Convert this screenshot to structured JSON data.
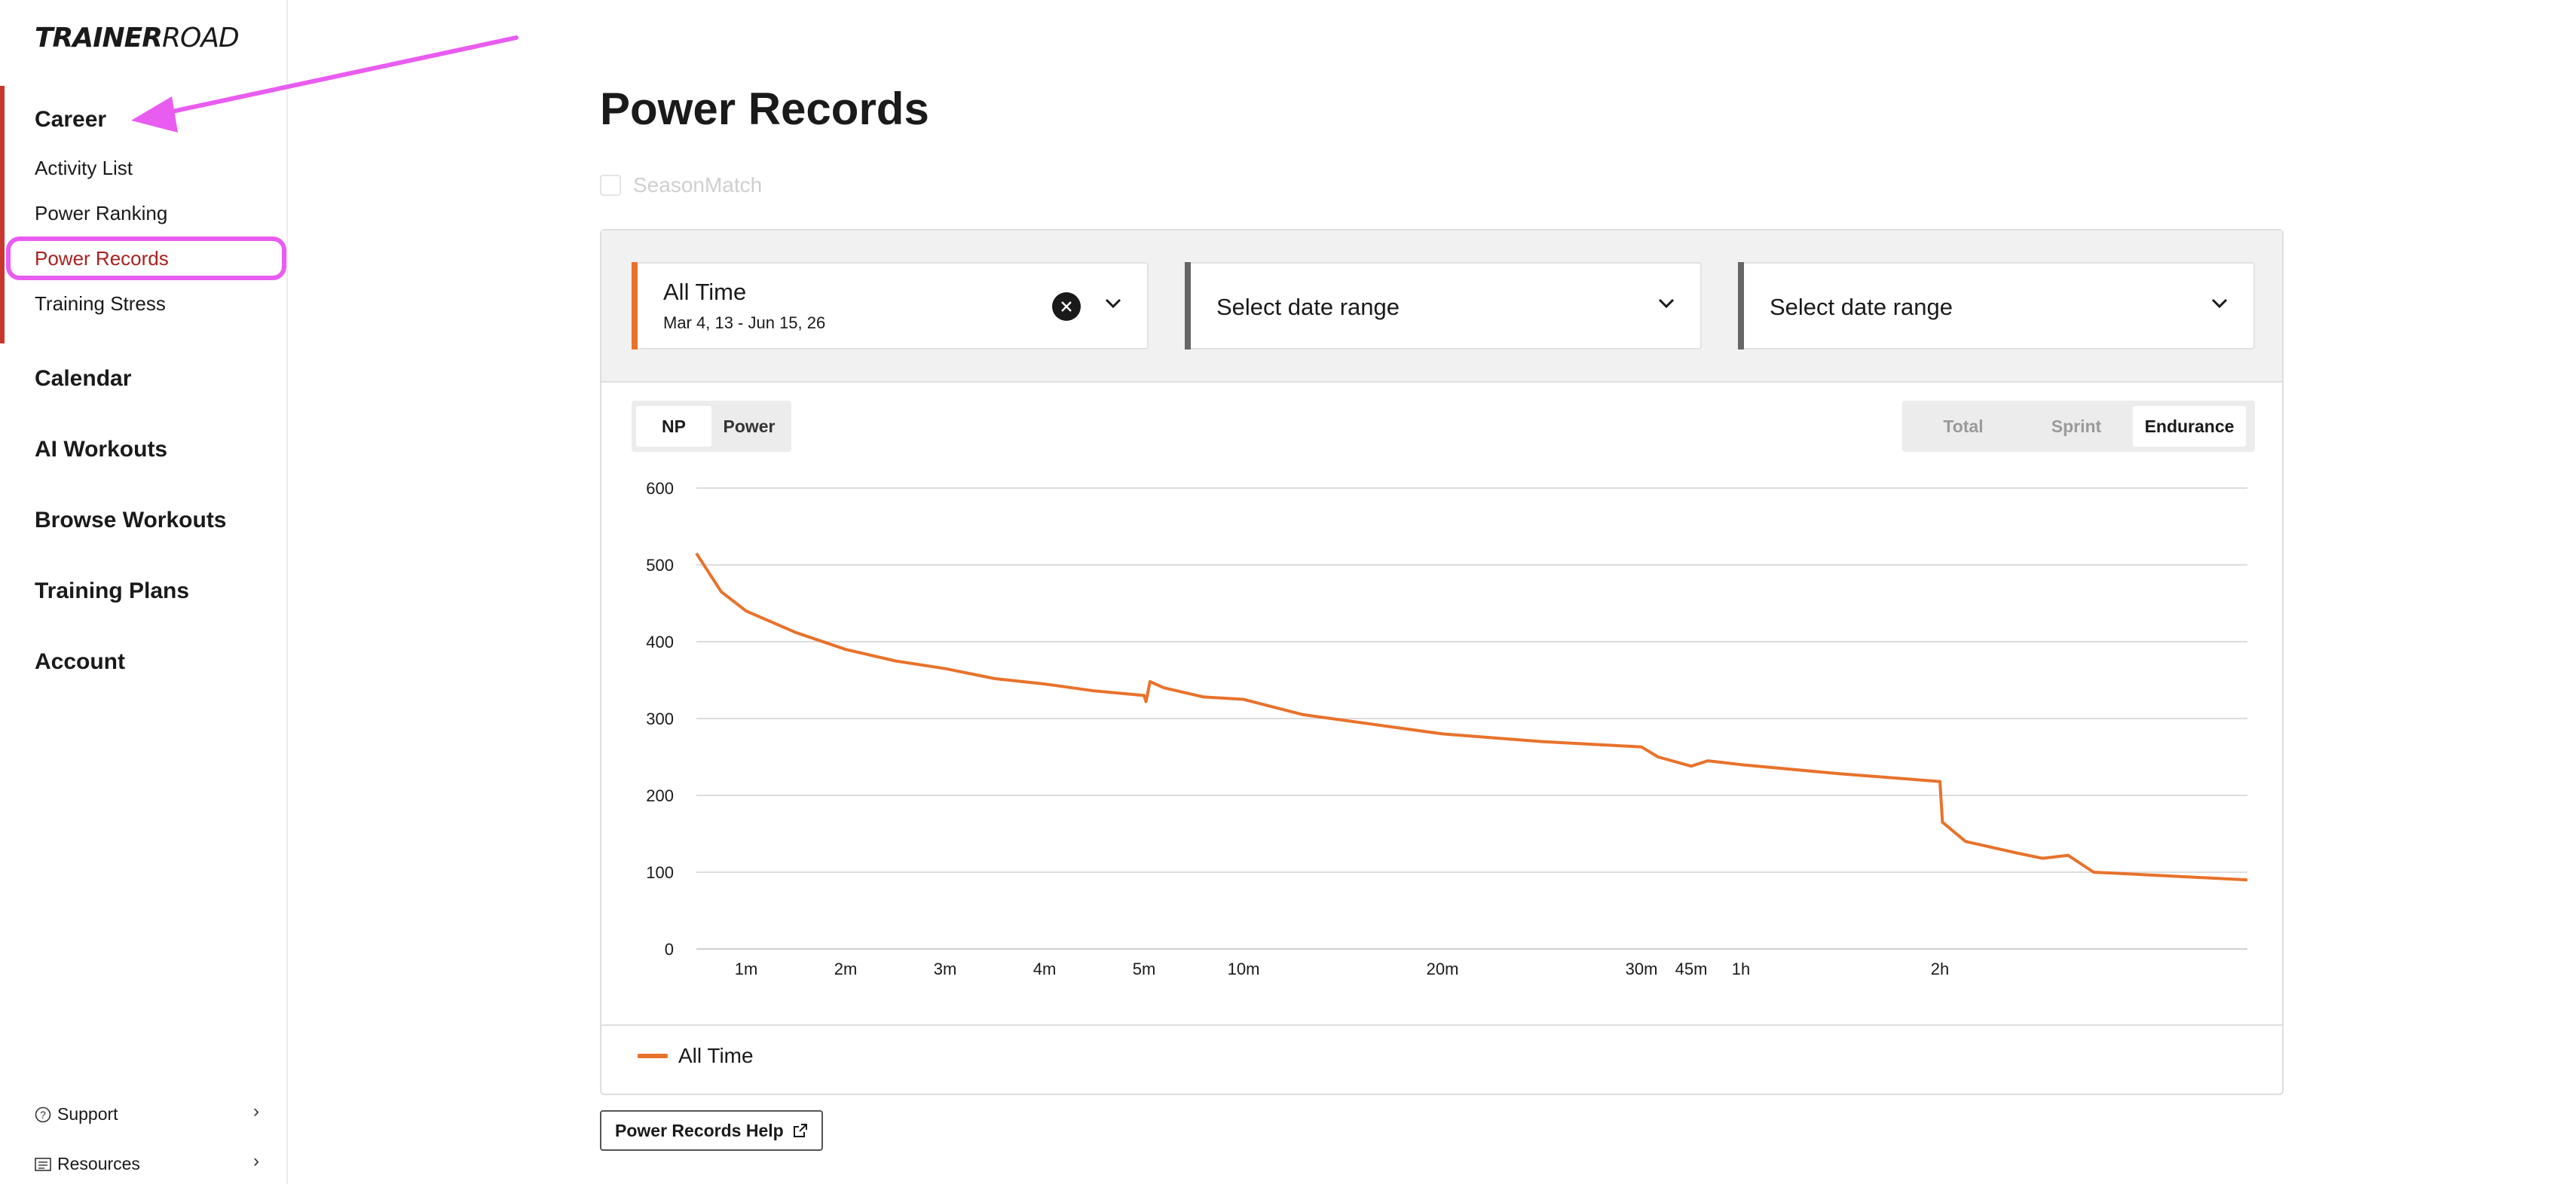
{
  "sidebar": {
    "logo": {
      "bold": "TRAINER",
      "rest": "ROAD"
    },
    "career": {
      "label": "Career",
      "items": [
        {
          "label": "Activity List"
        },
        {
          "label": "Power Ranking"
        },
        {
          "label": "Power Records"
        },
        {
          "label": "Training Stress"
        }
      ]
    },
    "nav": [
      {
        "label": "Calendar"
      },
      {
        "label": "AI Workouts"
      },
      {
        "label": "Browse Workouts"
      },
      {
        "label": "Training Plans"
      },
      {
        "label": "Account"
      }
    ],
    "footer": [
      {
        "label": "Support",
        "icon": "question-circle-icon"
      },
      {
        "label": "Resources",
        "icon": "document-icon"
      }
    ]
  },
  "main": {
    "title": "Power Records",
    "season_match": "SeasonMatch",
    "ranges": [
      {
        "label": "All Time",
        "sub": "Mar 4, 13 - Jun 15, 26",
        "accent": "#e8722b"
      },
      {
        "label": "Select date range",
        "sub": "",
        "accent": "#666666"
      },
      {
        "label": "Select date range",
        "sub": "",
        "accent": "#666666"
      }
    ],
    "metric_toggle": {
      "options": [
        "NP",
        "Power"
      ],
      "selected": "NP"
    },
    "type_toggle": {
      "options": [
        "Total",
        "Sprint",
        "Endurance"
      ],
      "selected": "Endurance"
    },
    "legend": "All Time",
    "help_button": "Power Records Help"
  },
  "colors": {
    "accent": "#e8722b",
    "active_nav": "#a8211f",
    "career_bar": "#c8372d",
    "annotation": "#e95cf0"
  },
  "chart_data": {
    "type": "line",
    "x_ticks": [
      "1m",
      "2m",
      "3m",
      "4m",
      "5m",
      "10m",
      "20m",
      "30m",
      "45m",
      "1h",
      "2h"
    ],
    "y_ticks": [
      0,
      100,
      200,
      300,
      400,
      500,
      600
    ],
    "ylim": [
      0,
      600
    ],
    "grid": true,
    "legend_position": "bottom-left",
    "series": [
      {
        "name": "All Time",
        "color": "#e8722b",
        "points": [
          [
            "0m",
            515
          ],
          [
            "0.25m",
            490
          ],
          [
            "0.5m",
            465
          ],
          [
            "1m",
            440
          ],
          [
            "1.5m",
            412
          ],
          [
            "2m",
            390
          ],
          [
            "2.5m",
            375
          ],
          [
            "3m",
            365
          ],
          [
            "3.5m",
            352
          ],
          [
            "4m",
            345
          ],
          [
            "4.5m",
            336
          ],
          [
            "5m",
            330
          ],
          [
            "5.1m",
            322
          ],
          [
            "5.3m",
            348
          ],
          [
            "6m",
            340
          ],
          [
            "8m",
            328
          ],
          [
            "10m",
            325
          ],
          [
            "13m",
            305
          ],
          [
            "20m",
            280
          ],
          [
            "25m",
            270
          ],
          [
            "30m",
            263
          ],
          [
            "35m",
            250
          ],
          [
            "45m",
            238
          ],
          [
            "50m",
            245
          ],
          [
            "1h",
            240
          ],
          [
            "1h30m",
            228
          ],
          [
            "2h",
            218
          ],
          [
            "2h01m",
            165
          ],
          [
            "2h10m",
            140
          ],
          [
            "2h30m",
            125
          ],
          [
            "2h40m",
            118
          ],
          [
            "2h50m",
            122
          ],
          [
            "3h",
            100
          ],
          [
            "4h",
            90
          ]
        ]
      }
    ]
  }
}
